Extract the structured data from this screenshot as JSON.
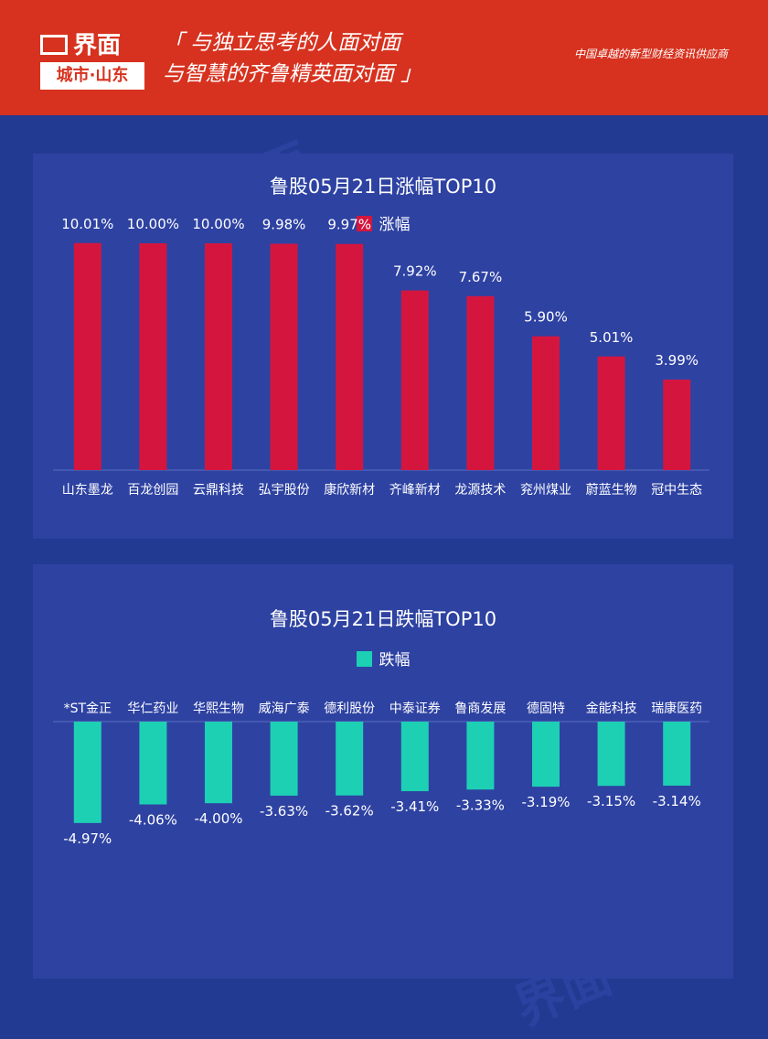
{
  "header": {
    "logo_main": "界面",
    "logo_sub": "城市·山东",
    "slogan_line1": "「 与独立思考的人面对面",
    "slogan_line2": "与智慧的齐鲁精英面对面 」",
    "tagline": "中国卓越的新型财经资讯供应商"
  },
  "colors": {
    "rise": "#d4163f",
    "fall": "#1dd0b4",
    "panel": "#2e42a2",
    "background": "#233a92",
    "header": "#d7321f"
  },
  "chart_data": [
    {
      "type": "bar",
      "title": "鲁股05月21日涨幅TOP10",
      "legend_position": "top-center",
      "categories": [
        "山东墨龙",
        "百龙创园",
        "云鼎科技",
        "弘宇股份",
        "康欣新材",
        "齐峰新材",
        "龙源技术",
        "兖州煤业",
        "蔚蓝生物",
        "冠中生态"
      ],
      "series": [
        {
          "name": "涨幅",
          "values": [
            10.01,
            10.0,
            10.0,
            9.98,
            9.97,
            7.92,
            7.67,
            5.9,
            5.01,
            3.99
          ],
          "labels": [
            "10.01%",
            "10.00%",
            "10.00%",
            "9.98%",
            "9.97%",
            "7.92%",
            "7.67%",
            "5.90%",
            "5.01%",
            "3.99%"
          ]
        }
      ],
      "ylim": [
        0,
        10.5
      ],
      "grid": false
    },
    {
      "type": "bar",
      "title": "鲁股05月21日跌幅TOP10",
      "legend_position": "top-center",
      "categories": [
        "*ST金正",
        "华仁药业",
        "华熙生物",
        "威海广泰",
        "德利股份",
        "中泰证券",
        "鲁商发展",
        "德固特",
        "金能科技",
        "瑞康医药"
      ],
      "series": [
        {
          "name": "跌幅",
          "values": [
            -4.97,
            -4.06,
            -4.0,
            -3.63,
            -3.62,
            -3.41,
            -3.33,
            -3.19,
            -3.15,
            -3.14
          ],
          "labels": [
            "-4.97%",
            "-4.06%",
            "-4.00%",
            "-3.63%",
            "-3.62%",
            "-3.41%",
            "-3.33%",
            "-3.19%",
            "-3.15%",
            "-3.14%"
          ]
        }
      ],
      "ylim": [
        -5.2,
        0
      ],
      "grid": false
    }
  ]
}
